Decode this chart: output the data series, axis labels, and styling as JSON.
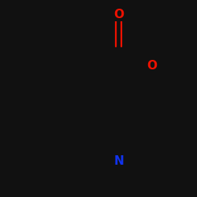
{
  "bg_color": "#111111",
  "bond_color": "#111111",
  "oxygen_color": "#ee1100",
  "nitrogen_color": "#1133ee",
  "lw": 2.0,
  "lw_dbl": 1.6,
  "fs": 11,
  "xlim": [
    -2.8,
    2.2
  ],
  "ylim": [
    -2.2,
    2.2
  ]
}
